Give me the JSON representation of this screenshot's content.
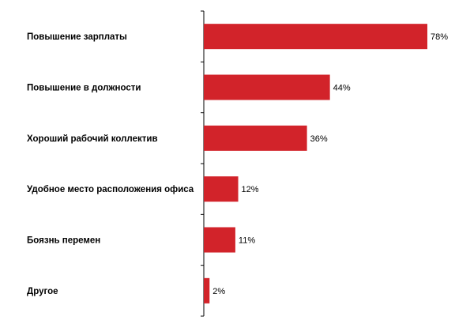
{
  "chart_data": {
    "type": "bar",
    "orientation": "horizontal",
    "categories": [
      "Повышение зарплаты",
      "Повышение в должности",
      "Хороший рабочий коллектив",
      "Удобное место расположения офиса",
      "Боязнь перемен",
      "Другое"
    ],
    "values": [
      78,
      44,
      36,
      12,
      11,
      2
    ],
    "value_labels": [
      "78%",
      "44%",
      "36%",
      "12%",
      "11%",
      "2%"
    ],
    "xlim": [
      0,
      100
    ],
    "grid": false,
    "legend": "none",
    "bar_color": "#d2232a"
  }
}
